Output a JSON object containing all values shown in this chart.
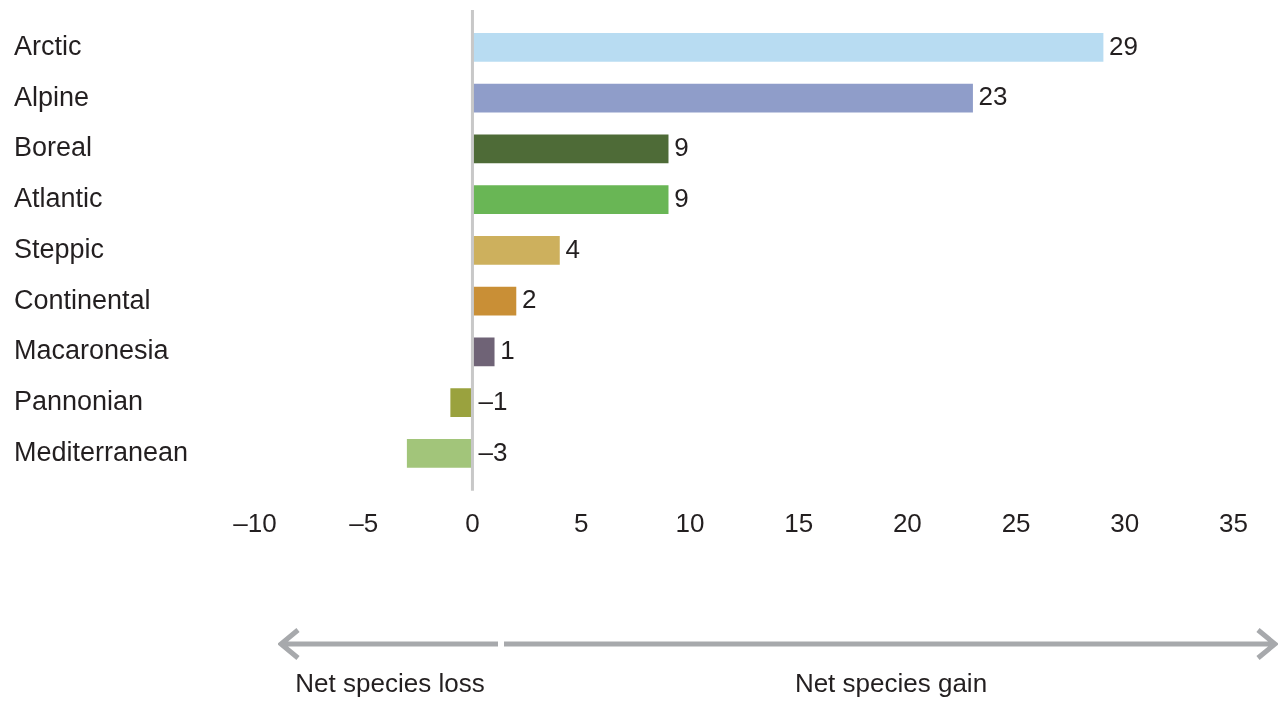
{
  "chart_data": {
    "type": "bar",
    "orientation": "horizontal",
    "categories": [
      "Arctic",
      "Alpine",
      "Boreal",
      "Atlantic",
      "Steppic",
      "Continental",
      "Macaronesia",
      "Pannonian",
      "Mediterranean"
    ],
    "values": [
      29,
      23,
      9,
      9,
      4,
      2,
      1,
      -1,
      -3
    ],
    "colors": [
      "#b8dcf2",
      "#8f9dc9",
      "#4e6b37",
      "#69b655",
      "#cdb05d",
      "#c98f36",
      "#6f6376",
      "#9aa23e",
      "#a2c57a"
    ],
    "value_labels": [
      "29",
      "23",
      "9",
      "9",
      "4",
      "2",
      "1",
      "–1",
      "–3"
    ],
    "xlim": [
      -10,
      35
    ],
    "xticks": [
      {
        "value": -10,
        "label": "–10"
      },
      {
        "value": -5,
        "label": "–5"
      },
      0,
      5,
      10,
      15,
      20,
      25,
      30,
      35
    ],
    "ref_lines": [
      {
        "axis": "x",
        "value": 0,
        "color": "#c8c8c8"
      }
    ],
    "annotations": [
      "Net species loss",
      "Net species gain"
    ]
  }
}
